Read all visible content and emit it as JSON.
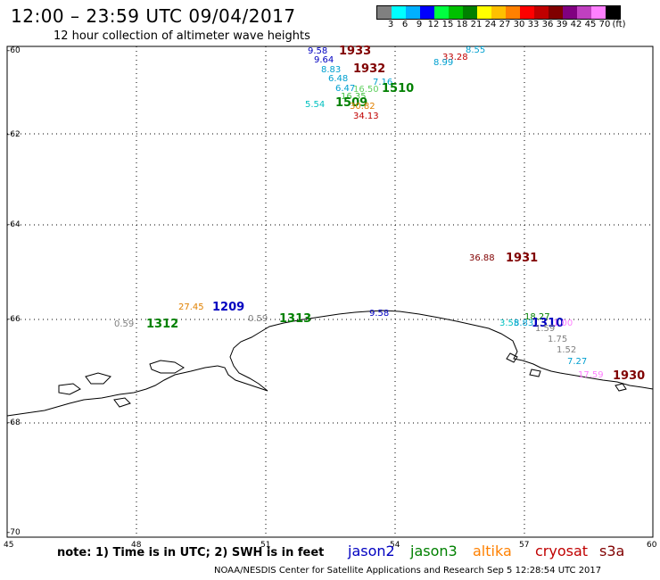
{
  "header": {
    "title": "12:00 – 23:59 UTC 09/04/2017",
    "subtitle": "12 hour collection of altimeter wave heights"
  },
  "legend": {
    "colors": [
      "#808080",
      "#00ffff",
      "#00b0ff",
      "#0000ff",
      "#00ff40",
      "#00c000",
      "#008000",
      "#ffff00",
      "#ffc000",
      "#ff8000",
      "#ff0000",
      "#c00000",
      "#800000",
      "#800080",
      "#c040c0",
      "#ff80ff",
      "#000000"
    ],
    "labels": [
      "3",
      "6",
      "9",
      "12",
      "15",
      "18",
      "21",
      "24",
      "27",
      "30",
      "33",
      "36",
      "39",
      "42",
      "45",
      "70",
      "(ft)"
    ]
  },
  "axes": {
    "y_labels": [
      "-60",
      "-62",
      "-64",
      "-66",
      "-68",
      "-70"
    ],
    "x_labels": [
      "45",
      "48",
      "51",
      "54",
      "57",
      "60"
    ]
  },
  "points": [
    {
      "text": "9.58",
      "color": "#0000c0"
    },
    {
      "text": "1933",
      "color": "#800000"
    },
    {
      "text": "9.64",
      "color": "#0000c0"
    },
    {
      "text": "8.83",
      "color": "#00a0d0"
    },
    {
      "text": "1932",
      "color": "#800000"
    },
    {
      "text": "6.48",
      "color": "#00a0d0"
    },
    {
      "text": "6.47",
      "color": "#00a0d0"
    },
    {
      "text": "7.16",
      "color": "#00a0d0"
    },
    {
      "text": "16.50",
      "color": "#60d060"
    },
    {
      "text": "1510",
      "color": "#008000"
    },
    {
      "text": "16.35",
      "color": "#40c040"
    },
    {
      "text": "1509",
      "color": "#008000"
    },
    {
      "text": "5.54",
      "color": "#00c0c0"
    },
    {
      "text": "30.82",
      "color": "#e08000"
    },
    {
      "text": "34.13",
      "color": "#c00000"
    },
    {
      "text": "8.55",
      "color": "#00a0d0"
    },
    {
      "text": "33.28",
      "color": "#c00000"
    },
    {
      "text": "8.99",
      "color": "#00a0d0"
    },
    {
      "text": "36.88",
      "color": "#800000"
    },
    {
      "text": "1931",
      "color": "#800000"
    },
    {
      "text": "27.45",
      "color": "#e08000"
    },
    {
      "text": "1209",
      "color": "#0000c0"
    },
    {
      "text": "0.59",
      "color": "#808080"
    },
    {
      "text": "1312",
      "color": "#008000"
    },
    {
      "text": "0.59",
      "color": "#808080"
    },
    {
      "text": "1313",
      "color": "#008000"
    },
    {
      "text": "9.58",
      "color": "#0000c0"
    },
    {
      "text": "18.27",
      "color": "#008000"
    },
    {
      "text": "3.55",
      "color": "#00c0c0"
    },
    {
      "text": "8.83",
      "color": "#00a0d0"
    },
    {
      "text": "1310",
      "color": "#0000c0"
    },
    {
      "text": "1.00",
      "color": "#ff80ff"
    },
    {
      "text": "1.59",
      "color": "#808080"
    },
    {
      "text": "1.75",
      "color": "#808080"
    },
    {
      "text": "1.52",
      "color": "#808080"
    },
    {
      "text": "7.27",
      "color": "#00a0d0"
    },
    {
      "text": "17.59",
      "color": "#ff80ff"
    },
    {
      "text": "1930",
      "color": "#800000"
    }
  ],
  "footer": {
    "note": "note: 1) Time is in UTC; 2) SWH is in feet",
    "satellites": [
      {
        "name": "jason2",
        "color": "#0000c0"
      },
      {
        "name": "jason3",
        "color": "#008000"
      },
      {
        "name": "altika",
        "color": "#ff8000"
      },
      {
        "name": "cryosat",
        "color": "#c00000"
      },
      {
        "name": "s3a",
        "color": "#800000"
      }
    ],
    "credit": "NOAA/NESDIS Center for Satellite Applications and Research   Sep  5 12:28:54 UTC 2017"
  }
}
